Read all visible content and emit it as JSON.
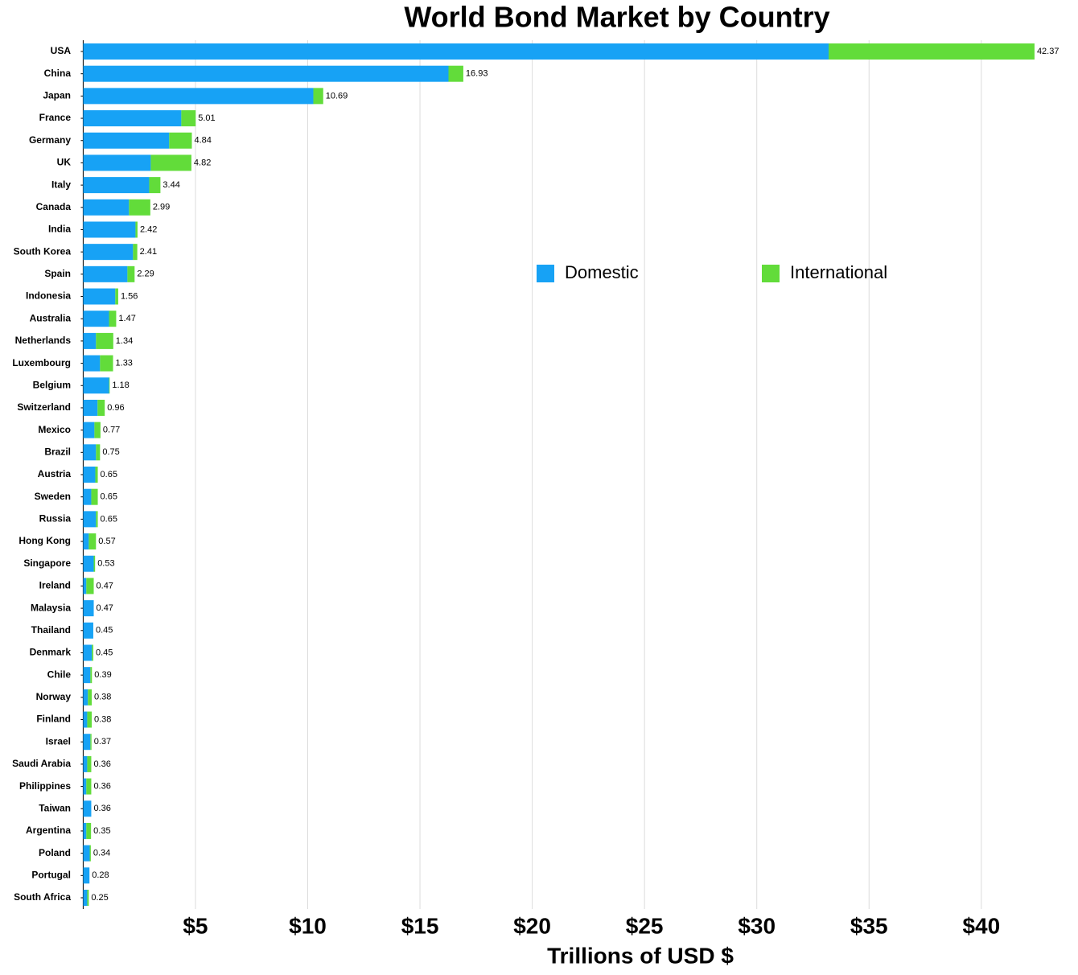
{
  "chart_data": {
    "type": "stacked-bar-horizontal",
    "title": "World Bond Market by Country",
    "x_label": "Trillions of USD $",
    "categories": [
      "USA",
      "China",
      "Japan",
      "France",
      "Germany",
      "UK",
      "Italy",
      "Canada",
      "India",
      "South Korea",
      "Spain",
      "Indonesia",
      "Australia",
      "Netherlands",
      "Luxembourg",
      "Belgium",
      "Switzerland",
      "Mexico",
      "Brazil",
      "Austria",
      "Sweden",
      "Russia",
      "Hong Kong",
      "Singapore",
      "Ireland",
      "Malaysia",
      "Thailand",
      "Denmark",
      "Chile",
      "Norway",
      "Finland",
      "Israel",
      "Saudi Arabia",
      "Philippines",
      "Taiwan",
      "Argentina",
      "Poland",
      "Portugal",
      "South Africa"
    ],
    "series": [
      {
        "name": "Domestic",
        "color": "#17a2f5",
        "values": [
          33.2,
          16.27,
          10.25,
          4.37,
          3.83,
          3.01,
          2.94,
          2.04,
          2.33,
          2.22,
          1.97,
          1.43,
          1.15,
          0.57,
          0.75,
          1.15,
          0.64,
          0.5,
          0.57,
          0.54,
          0.36,
          0.57,
          0.25,
          0.47,
          0.14,
          0.47,
          0.45,
          0.39,
          0.32,
          0.21,
          0.18,
          0.32,
          0.18,
          0.14,
          0.36,
          0.14,
          0.29,
          0.28,
          0.18
        ]
      },
      {
        "name": "International",
        "color": "#62dc3a",
        "values": [
          9.17,
          0.66,
          0.44,
          0.64,
          1.01,
          1.81,
          0.5,
          0.95,
          0.09,
          0.19,
          0.32,
          0.13,
          0.32,
          0.77,
          0.58,
          0.03,
          0.32,
          0.27,
          0.18,
          0.11,
          0.29,
          0.08,
          0.32,
          0.06,
          0.33,
          0,
          0,
          0.06,
          0.07,
          0.17,
          0.2,
          0.05,
          0.18,
          0.22,
          0,
          0.21,
          0.05,
          0,
          0.07
        ]
      }
    ],
    "totals": [
      42.37,
      16.93,
      10.69,
      5.01,
      4.84,
      4.82,
      3.44,
      2.99,
      2.42,
      2.41,
      2.29,
      1.56,
      1.47,
      1.34,
      1.33,
      1.18,
      0.96,
      0.77,
      0.75,
      0.65,
      0.65,
      0.65,
      0.57,
      0.53,
      0.47,
      0.47,
      0.45,
      0.45,
      0.39,
      0.38,
      0.38,
      0.37,
      0.36,
      0.36,
      0.36,
      0.35,
      0.34,
      0.28,
      0.25
    ],
    "xlim": [
      0,
      43
    ],
    "xticks": [
      {
        "value": 5,
        "label": "$5"
      },
      {
        "value": 10,
        "label": "$10"
      },
      {
        "value": 15,
        "label": "$15"
      },
      {
        "value": 20,
        "label": "$20"
      },
      {
        "value": 25,
        "label": "$25"
      },
      {
        "value": 30,
        "label": "$30"
      },
      {
        "value": 35,
        "label": "$35"
      },
      {
        "value": 40,
        "label": "$40"
      }
    ],
    "grid": true,
    "legend": "center"
  }
}
